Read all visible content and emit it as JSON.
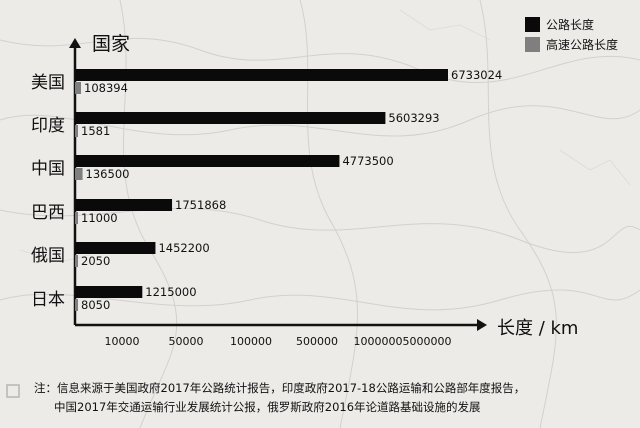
{
  "chart_data": {
    "type": "bar",
    "orientation": "horizontal",
    "ylabel": "国家",
    "xlabel": "长度 / km",
    "categories": [
      "美国",
      "印度",
      "中国",
      "巴西",
      "俄国",
      "日本"
    ],
    "series": [
      {
        "name": "公路长度",
        "color": "#0a0a0a",
        "values": [
          6733024,
          5603293,
          4773500,
          1751868,
          1452200,
          1215000
        ]
      },
      {
        "name": "高速公路长度",
        "color": "#7f7f7f",
        "values": [
          108394,
          1581,
          136500,
          11000,
          2050,
          8050
        ]
      }
    ],
    "x_ticks": [
      "10000",
      "50000",
      "100000",
      "500000",
      "1000000",
      "5000000"
    ],
    "grid": false,
    "legend_position": "top-right"
  },
  "note": {
    "line1": "注：信息来源于美国政府2017年公路统计报告，印度政府2017-18公路运输和公路部年度报告，",
    "line2": "中国2017年交通运输行业发展统计公报，俄罗斯政府2016年论道路基础设施的发展"
  }
}
